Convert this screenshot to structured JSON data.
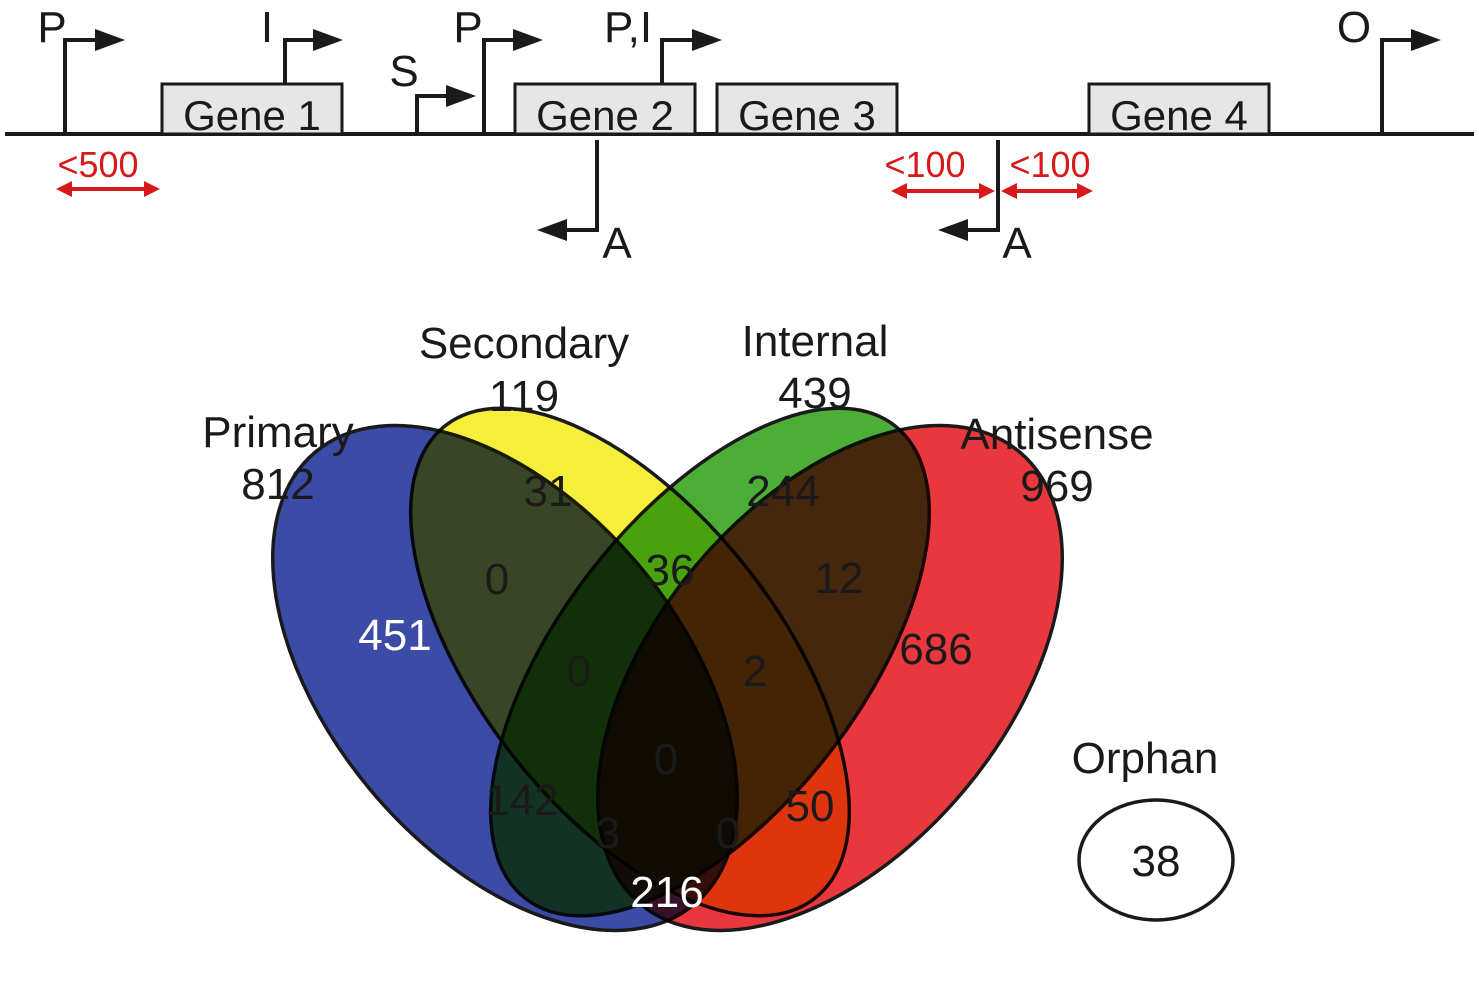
{
  "schematic": {
    "genes": [
      {
        "label": "Gene 1"
      },
      {
        "label": "Gene 2"
      },
      {
        "label": "Gene 3"
      },
      {
        "label": "Gene 4"
      }
    ],
    "tss": [
      {
        "label": "P",
        "strand": "forward"
      },
      {
        "label": "I",
        "strand": "forward"
      },
      {
        "label": "S",
        "strand": "forward"
      },
      {
        "label": "P",
        "strand": "forward"
      },
      {
        "label": "P,I",
        "strand": "forward"
      },
      {
        "label": "O",
        "strand": "forward"
      },
      {
        "label": "A",
        "strand": "reverse"
      },
      {
        "label": "A",
        "strand": "reverse"
      }
    ],
    "distances": [
      "<500",
      "<100",
      "<100"
    ],
    "distance_color": "#d7191c"
  },
  "venn": {
    "sets": [
      {
        "name": "Primary",
        "total": "812",
        "color": "#3b4ba6"
      },
      {
        "name": "Secondary",
        "total": "119",
        "color": "#f5ee3a"
      },
      {
        "name": "Internal",
        "total": "439",
        "color": "#4cae37"
      },
      {
        "name": "Antisense",
        "total": "969",
        "color": "#e8383d"
      }
    ],
    "regions": {
      "primary_only": "451",
      "secondary_only": "31",
      "internal_only": "244",
      "antisense_only": "686",
      "primary_secondary": "0",
      "secondary_internal": "36",
      "internal_antisense": "12",
      "primary_antisense": "216",
      "primary_internal": "142",
      "secondary_antisense": "50",
      "primary_secondary_internal": "0",
      "secondary_internal_antisense": "2",
      "primary_secondary_antisense": "0",
      "primary_internal_antisense": "3",
      "all_four": "0",
      "secondary_internal_antisense_lower": "0"
    },
    "orphan": {
      "name": "Orphan",
      "total": "38"
    }
  }
}
